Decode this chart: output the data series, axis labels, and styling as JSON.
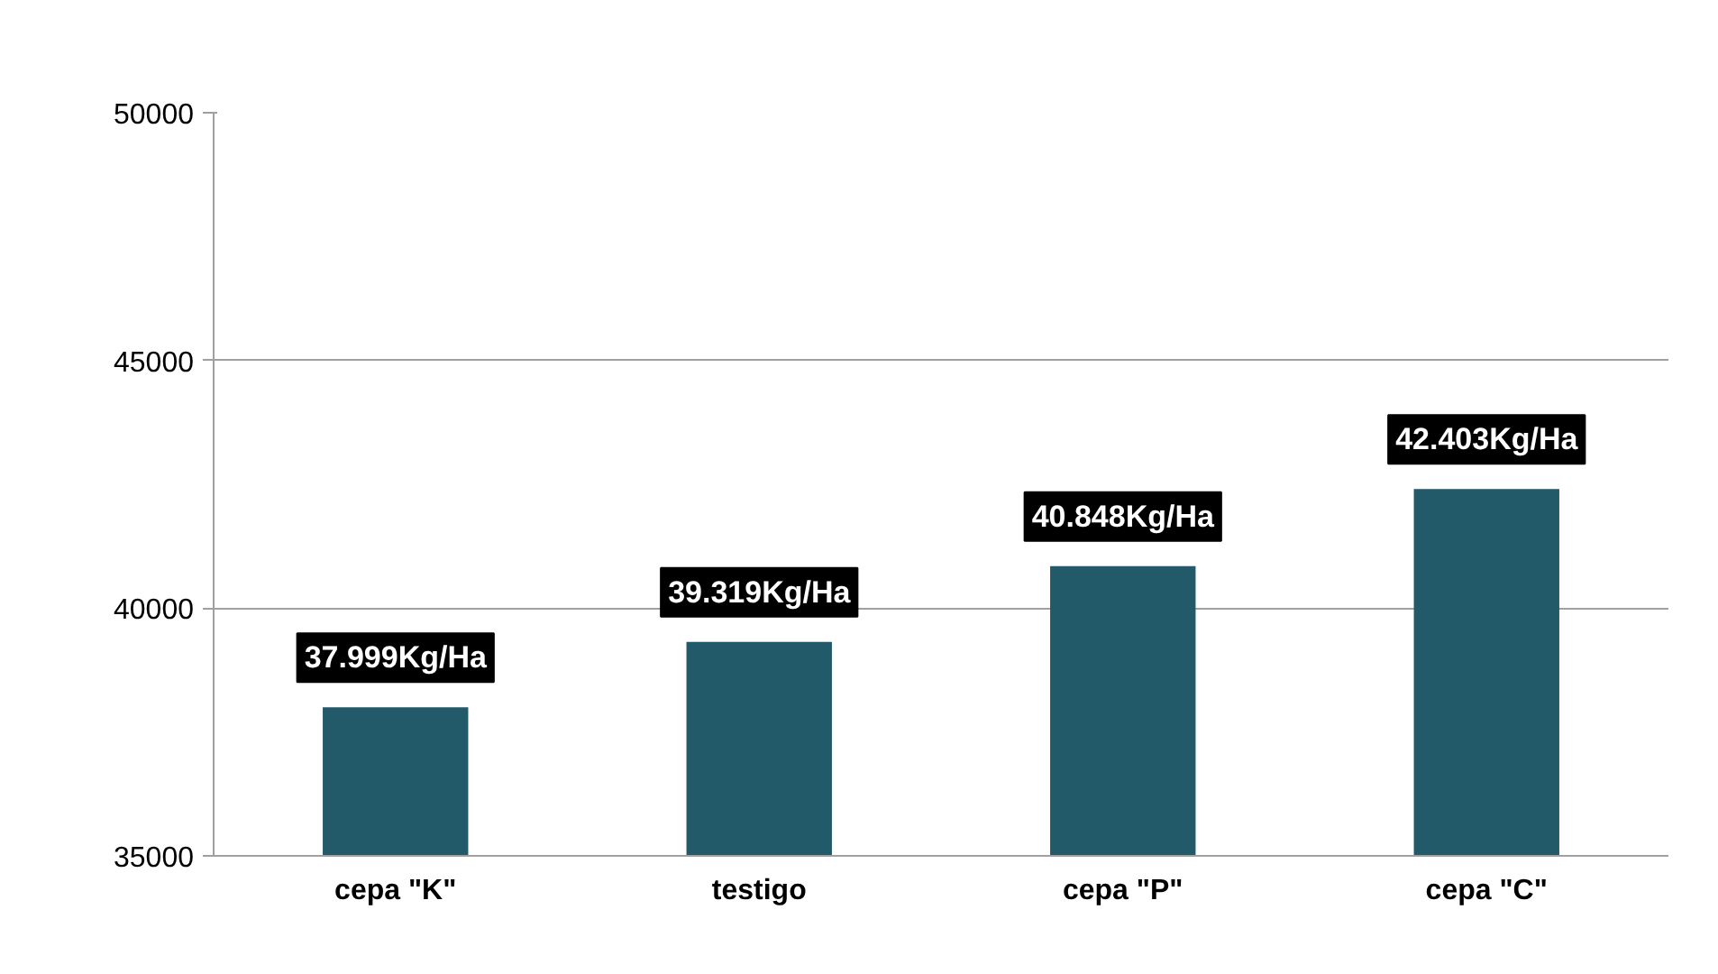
{
  "chart_data": {
    "type": "bar",
    "categories": [
      "cepa \"K\"",
      "testigo",
      "cepa \"P\"",
      "cepa \"C\""
    ],
    "values": [
      37999,
      39319,
      40848,
      42403
    ],
    "value_labels": [
      "37.999Kg/Ha",
      "39.319Kg/Ha",
      "40.848Kg/Ha",
      "42.403Kg/Ha"
    ],
    "color": "#235a6a",
    "ylim": [
      35000,
      50000
    ],
    "yticks": [
      35000,
      40000,
      45000,
      50000
    ],
    "grid": "y"
  }
}
